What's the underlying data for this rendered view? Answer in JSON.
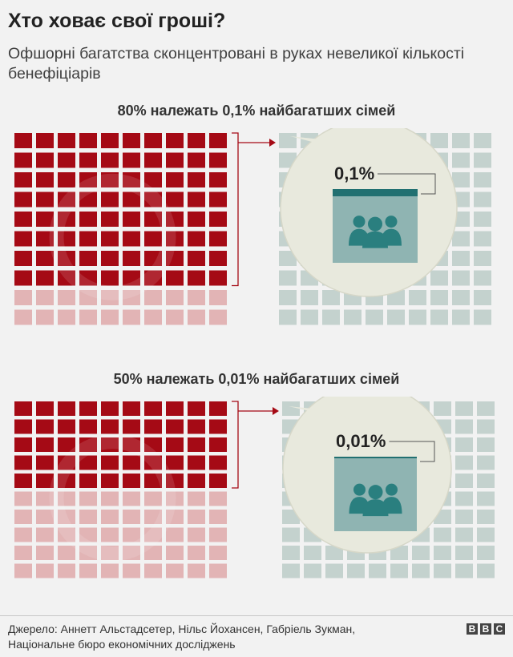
{
  "title": "Хто ховає свої гроші?",
  "subtitle": "Офшорні багатства сконцентровані в руках невеликої кількості бенефіціарів",
  "colors": {
    "red_owned": "#a50a15",
    "red_rest": "#e2b4b5",
    "teal_cell": "#c4d2ce",
    "teal_dark": "#217071",
    "teal_box": "#8fb4b2",
    "bubble": "#e8e9dd",
    "icon": "#2a7f7f",
    "watermark": "dollar-coin-watermark"
  },
  "panels": [
    {
      "heading": "80% належать 0,1% найбагатших сімей",
      "wealth_share": 0.8,
      "zoom_label": "0,1%",
      "zoom_fill_fraction": 0.1,
      "icon": "people-group-icon"
    },
    {
      "heading": "50% належать 0,01% найбагатших сімей",
      "wealth_share": 0.5,
      "zoom_label": "0,01%",
      "zoom_fill_fraction": 0.01,
      "icon": "people-group-icon"
    }
  ],
  "source": {
    "line1": "Джерело: Аннетт Альстадсетер, Нільс Йохансен, Габріель Зукман,",
    "line2": "Національне бюро економічних досліджень"
  },
  "logo": {
    "letters": [
      "B",
      "B",
      "C"
    ]
  }
}
